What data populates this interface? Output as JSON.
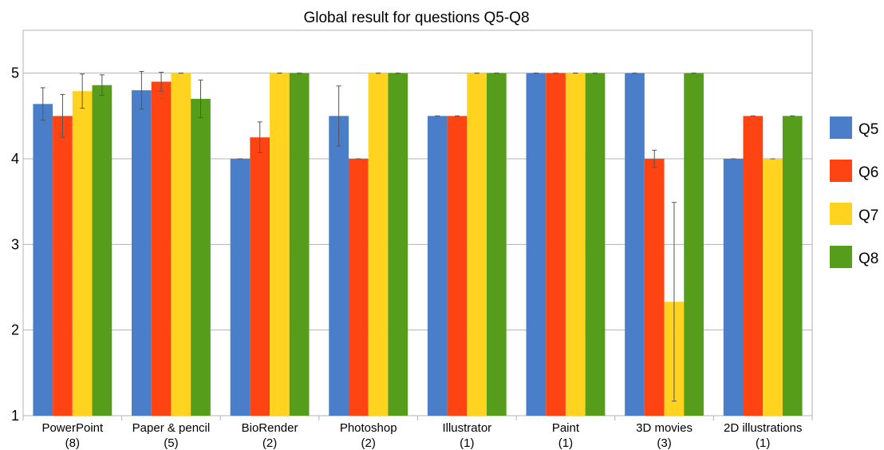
{
  "chart_data": {
    "type": "bar",
    "title": "Global result for questions Q5-Q8",
    "xlabel": "",
    "ylabel": "",
    "ylim": [
      1,
      5.5
    ],
    "yticks": [
      1,
      2,
      3,
      4,
      5
    ],
    "grid": true,
    "legend_position": "right",
    "categories": [
      {
        "name": "PowerPoint",
        "count": "(8)"
      },
      {
        "name": "Paper & pencil",
        "count": "(5)"
      },
      {
        "name": "BioRender",
        "count": "(2)"
      },
      {
        "name": "Photoshop",
        "count": "(2)"
      },
      {
        "name": "Illustrator",
        "count": "(1)"
      },
      {
        "name": "Paint",
        "count": "(1)"
      },
      {
        "name": "3D movies",
        "count": "(3)"
      },
      {
        "name": "2D illustrations",
        "count": "(1)"
      }
    ],
    "series": [
      {
        "name": "Q5",
        "color": "#4a7ec8",
        "values": [
          4.64,
          4.8,
          4.0,
          4.5,
          4.5,
          5.0,
          5.0,
          4.0
        ],
        "errors": [
          0.19,
          0.22,
          0.0,
          0.35,
          0.0,
          0.0,
          0.0,
          0.0
        ]
      },
      {
        "name": "Q6",
        "color": "#ff4413",
        "values": [
          4.5,
          4.9,
          4.25,
          4.0,
          4.5,
          5.0,
          4.0,
          4.5
        ],
        "errors": [
          0.25,
          0.11,
          0.18,
          0.0,
          0.0,
          0.0,
          0.1,
          0.0
        ]
      },
      {
        "name": "Q7",
        "color": "#ffd320",
        "values": [
          4.79,
          5.0,
          5.0,
          5.0,
          5.0,
          5.0,
          2.33,
          4.0
        ],
        "errors": [
          0.2,
          0.0,
          0.0,
          0.0,
          0.0,
          0.0,
          1.16,
          0.0
        ]
      },
      {
        "name": "Q8",
        "color": "#579d1c",
        "values": [
          4.86,
          4.7,
          5.0,
          5.0,
          5.0,
          5.0,
          5.0,
          4.5
        ],
        "errors": [
          0.12,
          0.22,
          0.0,
          0.0,
          0.0,
          0.0,
          0.0,
          0.0
        ]
      }
    ]
  }
}
